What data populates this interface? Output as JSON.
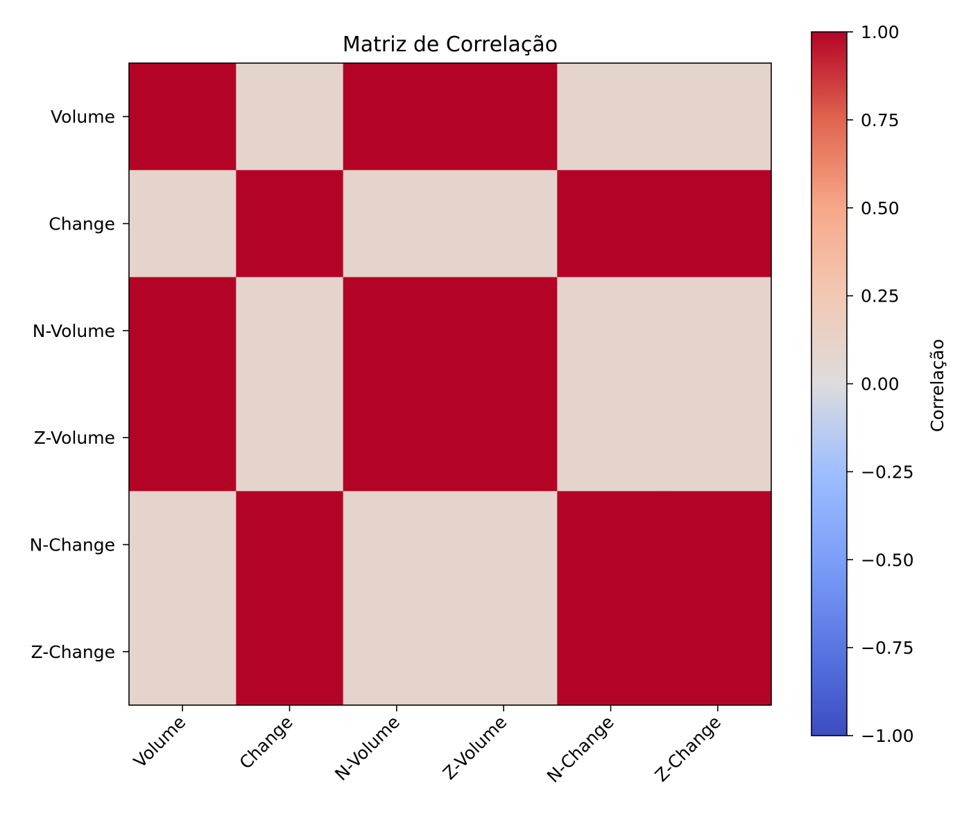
{
  "chart_data": {
    "type": "heatmap",
    "title": "Matriz de Correlação",
    "categories": [
      "Volume",
      "Change",
      "N-Volume",
      "Z-Volume",
      "N-Change",
      "Z-Change"
    ],
    "x": [
      "Volume",
      "Change",
      "N-Volume",
      "Z-Volume",
      "N-Change",
      "Z-Change"
    ],
    "y": [
      "Volume",
      "Change",
      "N-Volume",
      "Z-Volume",
      "N-Change",
      "Z-Change"
    ],
    "values": [
      [
        1.0,
        0.1,
        1.0,
        1.0,
        0.1,
        0.1
      ],
      [
        0.1,
        1.0,
        0.1,
        0.1,
        1.0,
        1.0
      ],
      [
        1.0,
        0.1,
        1.0,
        1.0,
        0.1,
        0.1
      ],
      [
        1.0,
        0.1,
        1.0,
        1.0,
        0.1,
        0.1
      ],
      [
        0.1,
        1.0,
        0.1,
        0.1,
        1.0,
        1.0
      ],
      [
        0.1,
        1.0,
        0.1,
        0.1,
        1.0,
        1.0
      ]
    ],
    "colorbar": {
      "label": "Correlação",
      "vmin": -1.0,
      "vmax": 1.0,
      "ticks": [
        1.0,
        0.75,
        0.5,
        0.25,
        0.0,
        -0.25,
        -0.5,
        -0.75,
        -1.0
      ],
      "tick_labels": [
        "1.00",
        "0.75",
        "0.50",
        "0.25",
        "0.00",
        "−0.25",
        "−0.50",
        "−0.75",
        "−1.00"
      ],
      "colormap": "coolwarm"
    },
    "grid": false,
    "xtick_rotation": "45-degrees"
  }
}
